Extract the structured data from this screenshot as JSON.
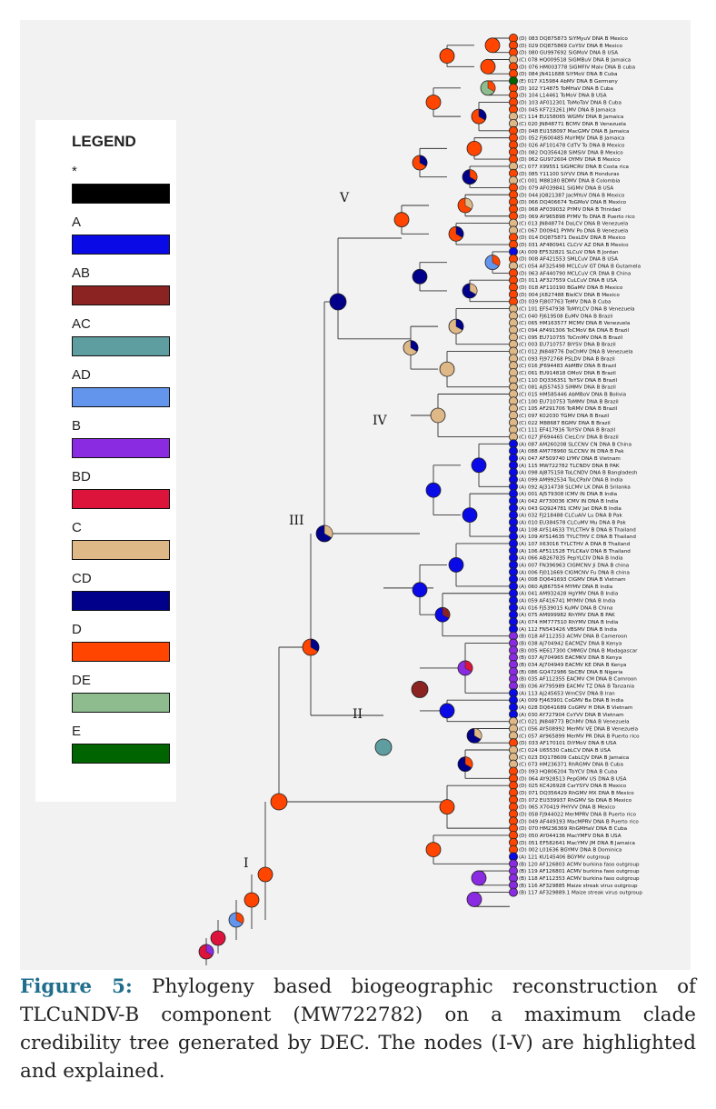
{
  "legend": {
    "title": "LEGEND",
    "items": [
      {
        "label": "*",
        "color": "#000000"
      },
      {
        "label": "A",
        "color": "#0a0ae6"
      },
      {
        "label": "AB",
        "color": "#8b2323"
      },
      {
        "label": "AC",
        "color": "#5f9ea0"
      },
      {
        "label": "AD",
        "color": "#6495ed"
      },
      {
        "label": "B",
        "color": "#8a2be2"
      },
      {
        "label": "BD",
        "color": "#dc143c"
      },
      {
        "label": "C",
        "color": "#deb887"
      },
      {
        "label": "CD",
        "color": "#00008b"
      },
      {
        "label": "D",
        "color": "#ff4500"
      },
      {
        "label": "DE",
        "color": "#8fbc8f"
      },
      {
        "label": "E",
        "color": "#006400"
      }
    ]
  },
  "node_labels": {
    "I": "I",
    "II": "II",
    "III": "III",
    "IV": "IV",
    "V": "V"
  },
  "tips": [
    "(D) 083 DQ875873 SiYMyuV DNA B Mexico",
    "(D) 029 DQ875869 CoYSV DNA B Mexico",
    "(D) 080 GU997692 SiGMoV DNA B USA",
    "(C) 078 HQ009518 SiGMBuV DNA B Jamaica",
    "(D) 076 HM003778 SiGMFIV Malv DNA B cuba",
    "(D) 084 JN411688 SiYMoV DNA B Cuba",
    "(E) 017 X15984 AbMV DNA B Germany",
    "(D) 102 Y14875 ToMHaV DNA B Cuba",
    "(D) 104 L14461 ToMoV DNA B USA",
    "(D) 103 AF012301 ToMoTaV DNA B Cuba",
    "(D) 045 KF723261 JMV DNA B Jamaica",
    "(C) 114 EU158065 WGMV DNA B Jamaica",
    "(C) 020 JN848771 BCMV DNA B Venezuela",
    "(D) 048 EU158097 MacGMV DNA B Jamaica",
    "(D) 052 FJ600485 MaYMJV DNA B Jamaica",
    "(D) 026 AF101478 CdTV To DNA B Mexico",
    "(D) 082 DQ356428 SiMSiV DNA B Mexico",
    "(D) 062 GU972604 OYMV DNA B Mexico",
    "(C) 077 X99551 SiGMCRV DNA B Costa rica",
    "(D) 085 Y11100 SiYVV DNA B Honduras",
    "(C) 001 M88180 BDMV DNA B Colombia",
    "(D) 079 AF039841 SiGMV DNA B USA",
    "(D) 044 JQ821387 JacMYuV DNA B Mexico",
    "(D) 066 DQ406674 ToGMoV DNA B Mexico",
    "(D) 068 AF039032 PYMV DNA B Trinidad",
    "(D) 069 AY965898 PYMV To DNA B Puerto rico",
    "(C) 013 JN848774 DaLCV DNA B Venezuela",
    "(C) 067 D00941 PYMV Po DNA B Venezuela",
    "(D) 014 DQ875871 DesLDV DNA B Mexico",
    "(D) 031 AF480941 CLCrV AZ DNA B Mexico",
    "(A) 009 EF532821 SLCuV DNA B Jordan",
    "(D) 008 AF421553 SMLCuV DNA B USA",
    "(C) 054 AF325498 MCLCuV GT DNA B Gutamela",
    "(D) 063 AF440790 MCLCuV CR DNA B China",
    "(D) 011 AF327559 CuLCuV DNA B USA",
    "(D) 018 AF110190 BGaMV DNA B Mexico",
    "(D) 004 JX827488 BleICV DNA B Mexico",
    "(D) 039 FJ807763 TeMV DNA B Cuba",
    "(C) 101 EF547938 ToMYLCV DNA B Venezuela",
    "(C) 040 FJ619508 EuMV DNA B Brazil",
    "(C) 065 HM163577 MCMV DNA B Venezuela",
    "(C) 094 AF491306 ToCMoV BA DNA B Brazil",
    "(C) 095 EU710755 ToCmMV DNA B Brazil",
    "(C) 003 EU710757 BIYSV DNA B Brazil",
    "(C) 012 JN848776 DaChMV DNA B Venezuela",
    "(C) 093 FJ972768 PSLDV DNA B Brazil",
    "(C) 016 JF694483 AbMBV DNA B Brazil",
    "(C) 061 EU914818 OMoV DNA B Brazil",
    "(C) 110 DQ336351 ToYSV DNA B Brazil",
    "(C) 081 AJ557453 SiMMV DNA B Brazil",
    "(C) 015 HM585446 AbMBoV DNA B Bolivia",
    "(C) 100 EU710753 ToMMV DNA B Brazil",
    "(C) 105 AF291706 ToRMV DNA B Brazil",
    "(C) 097 K02030 TGMV DNA B Brazil",
    "(C) 022 M88687 BGMV DNA B Brazil",
    "(C) 111 EF417916 ToYSV DNA B Brazil",
    "(C) 027 JF694465 CleLCrV DNA B Brazil",
    "(A) 087 AM260208 SLCCNV CN DNA B China",
    "(A) 088 AM778960 SLCCNV IN DNA B Pak",
    "(A) 047 AF509740 LYMV DNA B Vietnam",
    "(A) 115 MW722782 TLCNDV DNA B PAK",
    "(A) 098 AJ875158 ToLCNDV DNA B Bangladesh",
    "(A) 099 AM992534 ToLCPalV DNA B India",
    "(A) 092 AJ314738 SLCMV LK DNA B Srilanka",
    "(A) 001 AJ579308 ICMV IN DNA B India",
    "(A) 042 AY730036 ICMV IN DNA B India",
    "(A) 043 GQ924781 ICMV Jat DNA B India",
    "(A) 032 FJ218488 CLCuAlV Lu DNA B Pak",
    "(A) 010 EU384578 CLCuMV Mu DNA B Pak",
    "(A) 108 AY514633 TYLCTHV B DNA B Thailand",
    "(A) 109 AY514635 TYLCTHV C DNA B Thailand",
    "(A) 107 X63016 TYLCTHV A DNA B Thailand",
    "(A) 106 AF511528 TYLCKaV DNA B Thailand",
    "(A) 066 AB267835 PepYLCIV DNA B India",
    "(A) 007 FN396963 CIGMCNV Ji DNA B china",
    "(A) 006 FJ011669 CIGMCNV Fu DNA B china",
    "(A) 008 DQ641693 CIGMV DNA B Vietnam",
    "(A) 060 AJ867554 MYMV DNA B India",
    "(A) 041 AM932428 HgYMV DNA B India",
    "(A) 059 AF416741 MYMIV DNA B India",
    "(A) 016 FJ539015 KuMV DNA B China",
    "(A) 075 AM999982 RhYMV DNA B PAK",
    "(A) 074 HM777510 RhYMV DNA B India",
    "(A) 112 FN543426 VBSMV DNA B India",
    "(B) 018 AF112353 ACMV DNA B Cameroon",
    "(B) 038 AJ704942 EACMZV DNA B Kenya",
    "(B) 005 HE617300 CMMGV DNA B Madagascar",
    "(B) 037 AJ704965 EACMKV DNA B Kenya",
    "(B) 034 AJ704949 EACMV KE DNA B Kenya",
    "(B) 086 GQ472986 SbCBV DNA B Nigeria",
    "(B) 035 AF112355 EACMV CM DNA B Camroon",
    "(B) 036 AY795989 EACMV TZ DNA B Tanzania",
    "(A) 113 AJ245653 WmCSV DNA B Iran",
    "(A) 009 FJ463901 CoGMV Ba DNA B India",
    "(A) 028 DQ641689 CoGMV H DNA B Vietnam",
    "(A) 030 AY727904 CoYVV DNA B Vietnam",
    "(C) 021 JN848773 BChMV DNA B Venezuela",
    "(C) 056 AY508992 MerMV VE DNA B Venezuela",
    "(C) 057 AY965899 MerMV PR DNA B Puerto rico",
    "(D) 033 AF170101 DiYMoV DNA B USA",
    "(C) 024 U65530 CabLCV DNA B USA",
    "(C) 023 DQ178609 CabLCJV DNA B Jamaica",
    "(C) 073 HM236371 RhRGMV DNA B Cuba",
    "(D) 093 HQ806204 TbYCV DNA B Cuba",
    "(D) 064 AY928513 PepGMV US DNA B USA",
    "(D) 025 KC426928 CarYSYV DNA B Mexico",
    "(D) 071 DQ356429 RhGMV MX DNA B Mexico",
    "(D) 072 EU339937 RhGMV Sb DNA B Mexico",
    "(D) 065 X70419 PHYVV DNA B Mexico",
    "(D) 058 FJ944022 MerMPRV DNA B Puerto rico",
    "(D) 049 AF449193 MacMPRV DNA B Puerto rico",
    "(D) 070 HM236369 RhGMHaV DNA B Cuba",
    "(D) 050 AY044136 MacYMFV DNA B USA",
    "(D) 051 EF582641 MacYMV JM DNA B Jamaica",
    "(D) 002 L01636 BGYMV DNA B Dominica",
    "(A) 121 KU145406 BGYMV outgroup",
    "(B) 120 AF126803 ACMV burkina faso outgroup",
    "(B) 119 AF126801 ACMV burkina faso outgroup",
    "(B) 118 AF112353 ACMV burkina faso outgroup",
    "(B) 116 AF329885 Maize streak virus outgroup",
    "(B) 117 AF329889.1 Maize streak virus outgroup"
  ],
  "caption": {
    "head": "Figure 5:",
    "body": " Phylogeny based biogeographic reconstruction of TLCuNDV-B component (MW722782) on a maximum clade credibility tree generated by DEC. The nodes (I-V) are highlighted and explained."
  }
}
